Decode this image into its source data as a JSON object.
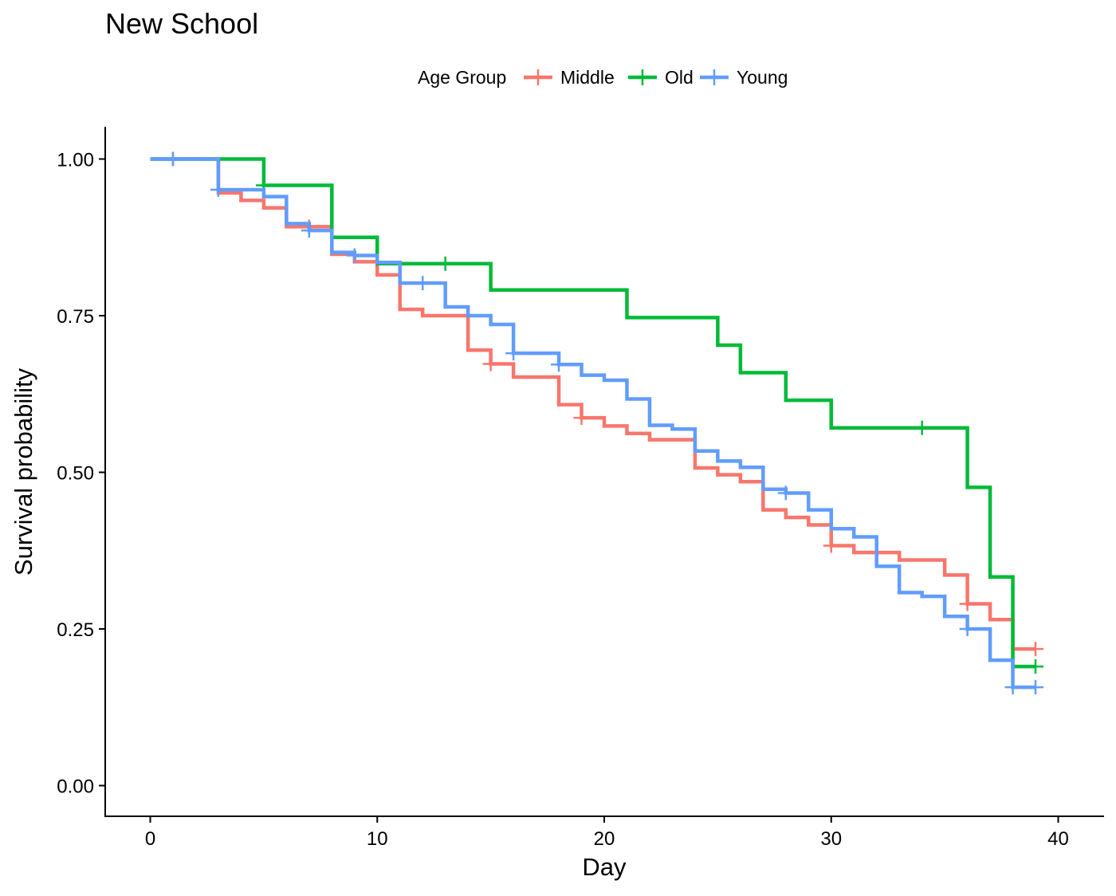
{
  "chart_data": {
    "type": "line",
    "subtype": "step",
    "title": "New School",
    "xlabel": "Day",
    "ylabel": "Survival probability",
    "xlim": [
      -2,
      42
    ],
    "ylim": [
      -0.05,
      1.05
    ],
    "xticks": [
      0,
      10,
      20,
      30,
      40
    ],
    "yticks": [
      0,
      0.25,
      0.5,
      0.75,
      1.0
    ],
    "xtick_labels": [
      "0",
      "10",
      "20",
      "30",
      "40"
    ],
    "ytick_labels": [
      "0.00",
      "0.25",
      "0.50",
      "0.75",
      "1.00"
    ],
    "grid": false,
    "legend": {
      "title": "Age Group",
      "position": "top",
      "entries": [
        "Middle",
        "Old",
        "Young"
      ]
    },
    "series": [
      {
        "name": "Middle",
        "color": "#F8766D",
        "steps": [
          [
            0,
            1.0
          ],
          [
            3,
            0.946
          ],
          [
            4,
            0.934
          ],
          [
            5,
            0.922
          ],
          [
            6,
            0.892
          ],
          [
            8,
            0.848
          ],
          [
            9,
            0.836
          ],
          [
            10,
            0.815
          ],
          [
            11,
            0.76
          ],
          [
            12,
            0.75
          ],
          [
            14,
            0.695
          ],
          [
            15,
            0.673
          ],
          [
            16,
            0.652
          ],
          [
            18,
            0.608
          ],
          [
            19,
            0.587
          ],
          [
            20,
            0.574
          ],
          [
            21,
            0.562
          ],
          [
            22,
            0.552
          ],
          [
            24,
            0.507
          ],
          [
            25,
            0.496
          ],
          [
            26,
            0.485
          ],
          [
            27,
            0.44
          ],
          [
            28,
            0.428
          ],
          [
            29,
            0.416
          ],
          [
            30,
            0.383
          ],
          [
            31,
            0.372
          ],
          [
            33,
            0.36
          ],
          [
            35,
            0.336
          ],
          [
            36,
            0.29
          ],
          [
            37,
            0.265
          ],
          [
            38,
            0.218
          ]
        ],
        "end_x": 39,
        "censored": [
          [
            1,
            1.0
          ],
          [
            7,
            0.892
          ],
          [
            15,
            0.673
          ],
          [
            19,
            0.587
          ],
          [
            30,
            0.383
          ],
          [
            36,
            0.29
          ],
          [
            39,
            0.218
          ]
        ]
      },
      {
        "name": "Old",
        "color": "#00BA38",
        "steps": [
          [
            0,
            1.0
          ],
          [
            5,
            0.958
          ],
          [
            8,
            0.875
          ],
          [
            10,
            0.833
          ],
          [
            15,
            0.791
          ],
          [
            21,
            0.747
          ],
          [
            25,
            0.703
          ],
          [
            26,
            0.659
          ],
          [
            28,
            0.615
          ],
          [
            30,
            0.571
          ],
          [
            36,
            0.476
          ],
          [
            37,
            0.333
          ],
          [
            38,
            0.19
          ]
        ],
        "end_x": 39,
        "censored": [
          [
            5,
            0.958
          ],
          [
            13,
            0.833
          ],
          [
            34,
            0.571
          ],
          [
            39,
            0.19
          ]
        ]
      },
      {
        "name": "Young",
        "color": "#619CFF",
        "steps": [
          [
            0,
            1.0
          ],
          [
            3,
            0.951
          ],
          [
            5,
            0.94
          ],
          [
            6,
            0.897
          ],
          [
            7,
            0.886
          ],
          [
            8,
            0.851
          ],
          [
            9,
            0.846
          ],
          [
            10,
            0.835
          ],
          [
            11,
            0.802
          ],
          [
            13,
            0.764
          ],
          [
            14,
            0.75
          ],
          [
            15,
            0.736
          ],
          [
            16,
            0.69
          ],
          [
            18,
            0.672
          ],
          [
            19,
            0.655
          ],
          [
            20,
            0.647
          ],
          [
            21,
            0.617
          ],
          [
            22,
            0.575
          ],
          [
            23,
            0.569
          ],
          [
            24,
            0.534
          ],
          [
            25,
            0.518
          ],
          [
            26,
            0.508
          ],
          [
            27,
            0.473
          ],
          [
            28,
            0.467
          ],
          [
            29,
            0.44
          ],
          [
            30,
            0.41
          ],
          [
            31,
            0.397
          ],
          [
            32,
            0.35
          ],
          [
            33,
            0.308
          ],
          [
            34,
            0.302
          ],
          [
            35,
            0.27
          ],
          [
            36,
            0.25
          ],
          [
            37,
            0.2
          ],
          [
            38,
            0.157
          ]
        ],
        "end_x": 39,
        "censored": [
          [
            1,
            1.0
          ],
          [
            3,
            0.951
          ],
          [
            7,
            0.886
          ],
          [
            9,
            0.846
          ],
          [
            12,
            0.802
          ],
          [
            16,
            0.69
          ],
          [
            18,
            0.672
          ],
          [
            28,
            0.467
          ],
          [
            36,
            0.25
          ],
          [
            38,
            0.157
          ],
          [
            39,
            0.157
          ]
        ]
      }
    ]
  }
}
